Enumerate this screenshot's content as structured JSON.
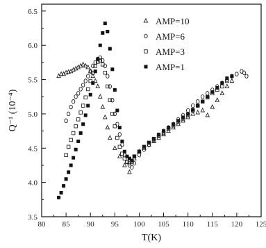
{
  "chart_data": {
    "type": "scatter",
    "xlabel": "T(K)",
    "ylabel": "Q⁻¹ (10⁻⁴)",
    "xlim": [
      80,
      125
    ],
    "ylim": [
      3.5,
      6.6
    ],
    "xticks": [
      80,
      85,
      90,
      95,
      100,
      105,
      110,
      115,
      120,
      125
    ],
    "yticks": [
      3.5,
      4.0,
      4.5,
      5.0,
      5.5,
      6.0,
      6.5
    ],
    "xtick_labels": [
      "80",
      "85",
      "90",
      "95",
      "100",
      "105",
      "110",
      "115",
      "120",
      "125"
    ],
    "ytick_labels": [
      "3.5",
      "4.0",
      "4.5",
      "5.0",
      "5.5",
      "6.0",
      "6.5"
    ],
    "legend_position": "top-right",
    "grid": false,
    "series": [
      {
        "name": "AMP=10",
        "marker": "triangle",
        "points": [
          [
            83.5,
            5.55
          ],
          [
            84.0,
            5.58
          ],
          [
            84.5,
            5.58
          ],
          [
            85.0,
            5.6
          ],
          [
            85.5,
            5.61
          ],
          [
            86.0,
            5.62
          ],
          [
            86.5,
            5.64
          ],
          [
            87.0,
            5.66
          ],
          [
            87.5,
            5.68
          ],
          [
            88.0,
            5.7
          ],
          [
            88.5,
            5.72
          ],
          [
            89.0,
            5.7
          ],
          [
            89.5,
            5.68
          ],
          [
            90.0,
            5.62
          ],
          [
            90.5,
            5.55
          ],
          [
            91.0,
            5.48
          ],
          [
            91.5,
            5.4
          ],
          [
            92.0,
            5.25
          ],
          [
            92.5,
            5.1
          ],
          [
            93.0,
            4.95
          ],
          [
            93.5,
            4.8
          ],
          [
            94.0,
            4.65
          ],
          [
            95.0,
            4.5
          ],
          [
            96.0,
            4.38
          ],
          [
            97.0,
            4.25
          ],
          [
            98.0,
            4.15
          ],
          [
            99.0,
            4.35
          ],
          [
            100.0,
            4.45
          ],
          [
            101.0,
            4.5
          ],
          [
            102.0,
            4.55
          ],
          [
            103.0,
            4.6
          ],
          [
            104.0,
            4.65
          ],
          [
            105.0,
            4.7
          ],
          [
            106.0,
            4.75
          ],
          [
            107.0,
            4.8
          ],
          [
            108.0,
            4.85
          ],
          [
            109.0,
            4.9
          ],
          [
            110.0,
            4.95
          ],
          [
            111.0,
            5.0
          ],
          [
            112.0,
            5.02
          ],
          [
            113.0,
            5.05
          ],
          [
            114.0,
            4.98
          ],
          [
            115.0,
            5.1
          ],
          [
            116.0,
            5.2
          ],
          [
            117.0,
            5.3
          ],
          [
            118.0,
            5.4
          ],
          [
            119.0,
            5.48
          ]
        ]
      },
      {
        "name": "AMP=6",
        "marker": "circle",
        "points": [
          [
            85.0,
            4.9
          ],
          [
            85.5,
            5.0
          ],
          [
            86.0,
            5.1
          ],
          [
            86.5,
            5.18
          ],
          [
            87.0,
            5.25
          ],
          [
            87.5,
            5.3
          ],
          [
            88.0,
            5.36
          ],
          [
            88.5,
            5.42
          ],
          [
            89.0,
            5.48
          ],
          [
            89.5,
            5.55
          ],
          [
            90.0,
            5.62
          ],
          [
            90.5,
            5.7
          ],
          [
            91.0,
            5.75
          ],
          [
            91.5,
            5.8
          ],
          [
            92.0,
            5.82
          ],
          [
            92.5,
            5.78
          ],
          [
            93.0,
            5.7
          ],
          [
            93.5,
            5.55
          ],
          [
            94.0,
            5.4
          ],
          [
            94.5,
            5.2
          ],
          [
            95.0,
            5.0
          ],
          [
            95.5,
            4.85
          ],
          [
            96.0,
            4.7
          ],
          [
            96.5,
            4.55
          ],
          [
            97.0,
            4.4
          ],
          [
            97.5,
            4.3
          ],
          [
            98.0,
            4.25
          ],
          [
            98.5,
            4.22
          ],
          [
            99.0,
            4.28
          ],
          [
            100.0,
            4.4
          ],
          [
            101.0,
            4.48
          ],
          [
            102.0,
            4.55
          ],
          [
            103.0,
            4.62
          ],
          [
            104.0,
            4.68
          ],
          [
            105.0,
            4.75
          ],
          [
            106.0,
            4.8
          ],
          [
            107.0,
            4.85
          ],
          [
            108.0,
            4.92
          ],
          [
            109.0,
            4.98
          ],
          [
            110.0,
            5.05
          ],
          [
            111.0,
            5.12
          ],
          [
            112.0,
            5.18
          ],
          [
            113.0,
            5.25
          ],
          [
            114.0,
            5.3
          ],
          [
            115.0,
            5.35
          ],
          [
            116.0,
            5.4
          ],
          [
            117.0,
            5.45
          ],
          [
            118.0,
            5.5
          ],
          [
            119.0,
            5.55
          ],
          [
            120.0,
            5.58
          ],
          [
            121.0,
            5.62
          ],
          [
            121.5,
            5.6
          ],
          [
            122.0,
            5.55
          ]
        ]
      },
      {
        "name": "AMP=3",
        "marker": "square-open",
        "points": [
          [
            85.0,
            4.4
          ],
          [
            85.5,
            4.52
          ],
          [
            86.0,
            4.62
          ],
          [
            86.5,
            4.72
          ],
          [
            87.0,
            4.82
          ],
          [
            87.5,
            4.92
          ],
          [
            88.0,
            5.02
          ],
          [
            88.5,
            5.12
          ],
          [
            89.0,
            5.24
          ],
          [
            89.5,
            5.36
          ],
          [
            90.0,
            5.48
          ],
          [
            90.5,
            5.6
          ],
          [
            91.0,
            5.7
          ],
          [
            91.5,
            5.76
          ],
          [
            92.0,
            5.78
          ],
          [
            92.5,
            5.72
          ],
          [
            93.0,
            5.6
          ],
          [
            93.5,
            5.4
          ],
          [
            94.0,
            5.2
          ],
          [
            94.5,
            5.0
          ],
          [
            95.0,
            4.82
          ],
          [
            95.5,
            4.65
          ],
          [
            96.0,
            4.52
          ],
          [
            96.5,
            4.42
          ],
          [
            97.0,
            4.35
          ],
          [
            97.5,
            4.3
          ],
          [
            98.0,
            4.28
          ],
          [
            98.5,
            4.3
          ],
          [
            99.0,
            4.38
          ],
          [
            100.0,
            4.45
          ],
          [
            101.0,
            4.52
          ],
          [
            102.0,
            4.58
          ],
          [
            103.0,
            4.63
          ],
          [
            104.0,
            4.68
          ],
          [
            105.0,
            4.72
          ],
          [
            106.0,
            4.78
          ],
          [
            107.0,
            4.83
          ],
          [
            108.0,
            4.88
          ],
          [
            109.0,
            4.93
          ],
          [
            110.0,
            4.98
          ],
          [
            111.0,
            5.05
          ],
          [
            112.0,
            5.12
          ],
          [
            113.0,
            5.18
          ],
          [
            114.0,
            5.24
          ],
          [
            115.0,
            5.3
          ],
          [
            116.0,
            5.35
          ],
          [
            117.0,
            5.4
          ],
          [
            118.0,
            5.48
          ]
        ]
      },
      {
        "name": "AMP=1",
        "marker": "square-filled",
        "points": [
          [
            83.5,
            3.78
          ],
          [
            84.0,
            3.85
          ],
          [
            84.5,
            3.95
          ],
          [
            85.0,
            4.05
          ],
          [
            85.5,
            4.15
          ],
          [
            86.0,
            4.25
          ],
          [
            86.5,
            4.36
          ],
          [
            87.0,
            4.48
          ],
          [
            87.5,
            4.6
          ],
          [
            88.0,
            4.72
          ],
          [
            88.5,
            4.85
          ],
          [
            89.0,
            4.98
          ],
          [
            89.5,
            5.12
          ],
          [
            90.0,
            5.28
          ],
          [
            90.5,
            5.45
          ],
          [
            91.0,
            5.62
          ],
          [
            91.5,
            5.8
          ],
          [
            92.0,
            6.0
          ],
          [
            92.5,
            6.18
          ],
          [
            93.0,
            6.32
          ],
          [
            93.5,
            6.2
          ],
          [
            94.0,
            5.95
          ],
          [
            94.5,
            5.65
          ],
          [
            95.0,
            5.35
          ],
          [
            95.5,
            5.05
          ],
          [
            96.0,
            4.8
          ],
          [
            96.5,
            4.6
          ],
          [
            97.0,
            4.45
          ],
          [
            97.5,
            4.38
          ],
          [
            98.0,
            4.35
          ],
          [
            98.5,
            4.32
          ],
          [
            99.0,
            4.38
          ],
          [
            100.0,
            4.45
          ],
          [
            101.0,
            4.52
          ],
          [
            102.0,
            4.58
          ],
          [
            103.0,
            4.64
          ],
          [
            104.0,
            4.7
          ],
          [
            105.0,
            4.75
          ],
          [
            106.0,
            4.8
          ],
          [
            107.0,
            4.85
          ],
          [
            108.0,
            4.9
          ],
          [
            109.0,
            4.95
          ],
          [
            110.0,
            5.0
          ],
          [
            111.0,
            5.06
          ],
          [
            112.0,
            5.12
          ],
          [
            113.0,
            5.18
          ],
          [
            114.0,
            5.25
          ],
          [
            115.0,
            5.32
          ],
          [
            116.0,
            5.38
          ],
          [
            117.0,
            5.45
          ],
          [
            118.0,
            5.52
          ],
          [
            119.0,
            5.55
          ]
        ]
      }
    ]
  }
}
